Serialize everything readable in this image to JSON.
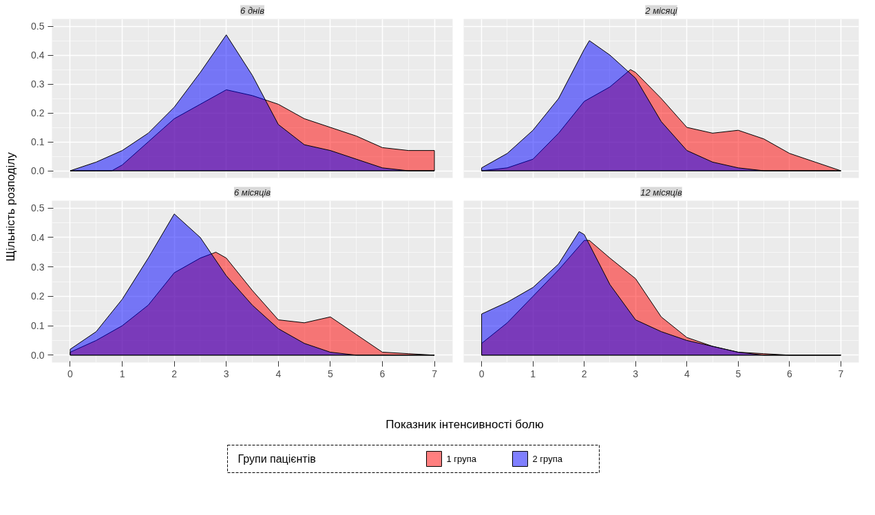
{
  "chart_data": [
    {
      "type": "area",
      "title": "6 днів",
      "ylabel": "Щільність розподілу",
      "legend_title": "Групи пацієнтів",
      "legend": "bottom",
      "tick_labels": "y",
      "grid": true,
      "xlim": [
        -0.35,
        7.35
      ],
      "ylim": [
        -0.025,
        0.525
      ],
      "xticks": [
        0,
        1,
        2,
        3,
        4,
        5,
        6,
        7
      ],
      "yticks": [
        {
          "value": 0,
          "label": "0.0"
        },
        {
          "value": 0.1,
          "label": "0.1"
        },
        {
          "value": 0.2,
          "label": "0.2"
        },
        {
          "value": 0.3,
          "label": "0.3"
        },
        {
          "value": 0.4,
          "label": "0.4"
        },
        {
          "value": 0.5,
          "label": "0.5"
        }
      ],
      "series": [
        {
          "name": "1 група",
          "color": "#ff0000",
          "x": [
            0,
            0.5,
            0.8,
            1,
            1.5,
            2,
            2.5,
            3,
            3.5,
            4,
            4.5,
            5,
            5.5,
            6,
            6.5,
            7
          ],
          "values": [
            0,
            0,
            0,
            0.02,
            0.1,
            0.18,
            0.23,
            0.28,
            0.26,
            0.23,
            0.18,
            0.15,
            0.12,
            0.08,
            0.07,
            0.07
          ]
        },
        {
          "name": "2 група",
          "color": "#0000ff",
          "x": [
            0,
            0.5,
            1,
            1.5,
            2,
            2.5,
            3,
            3.5,
            4,
            4.5,
            5,
            5.5,
            6,
            6.5,
            7
          ],
          "values": [
            0,
            0.03,
            0.07,
            0.13,
            0.22,
            0.34,
            0.47,
            0.33,
            0.16,
            0.09,
            0.07,
            0.04,
            0.01,
            0,
            0
          ]
        }
      ]
    },
    {
      "type": "area",
      "title": "2 місяці",
      "tick_labels": false,
      "grid": true,
      "xlim": [
        -0.35,
        7.35
      ],
      "ylim": [
        -0.025,
        0.525
      ],
      "xticks": [
        0,
        1,
        2,
        3,
        4,
        5,
        6,
        7
      ],
      "yticks": [
        0,
        0.1,
        0.2,
        0.3,
        0.4,
        0.5
      ],
      "series": [
        {
          "color": "#ff0000",
          "x": [
            0,
            0.5,
            1,
            1.5,
            2,
            2.5,
            2.9,
            3,
            3.5,
            4,
            4.5,
            5,
            5.5,
            6,
            6.5,
            7
          ],
          "values": [
            0,
            0.01,
            0.04,
            0.13,
            0.24,
            0.29,
            0.35,
            0.34,
            0.25,
            0.15,
            0.13,
            0.14,
            0.11,
            0.06,
            0.03,
            0
          ]
        },
        {
          "color": "#0000ff",
          "x": [
            0,
            0.5,
            1,
            1.5,
            2,
            2.1,
            2.5,
            3,
            3.5,
            4,
            4.5,
            5,
            5.5,
            6,
            6.5,
            7
          ],
          "values": [
            0.01,
            0.06,
            0.14,
            0.25,
            0.42,
            0.45,
            0.4,
            0.32,
            0.17,
            0.07,
            0.03,
            0.01,
            0,
            0,
            0,
            0
          ]
        }
      ]
    },
    {
      "type": "area",
      "title": "6 місяців",
      "xlabel": "Показник інтенсивності болю",
      "grid": true,
      "xlim": [
        -0.35,
        7.35
      ],
      "ylim": [
        -0.025,
        0.525
      ],
      "xticks": [
        0,
        1,
        2,
        3,
        4,
        5,
        6,
        7
      ],
      "yticks": [
        {
          "value": 0,
          "label": "0.0"
        },
        {
          "value": 0.1,
          "label": "0.1"
        },
        {
          "value": 0.2,
          "label": "0.2"
        },
        {
          "value": 0.3,
          "label": "0.3"
        },
        {
          "value": 0.4,
          "label": "0.4"
        },
        {
          "value": 0.5,
          "label": "0.5"
        }
      ],
      "series": [
        {
          "color": "#ff0000",
          "x": [
            0,
            0.5,
            1,
            1.5,
            2,
            2.5,
            2.8,
            3,
            3.5,
            4,
            4.5,
            5,
            5.5,
            6,
            6.5,
            7
          ],
          "values": [
            0.01,
            0.05,
            0.1,
            0.17,
            0.28,
            0.33,
            0.35,
            0.33,
            0.22,
            0.12,
            0.11,
            0.13,
            0.07,
            0.01,
            0.005,
            0
          ]
        },
        {
          "color": "#0000ff",
          "x": [
            0,
            0.5,
            1,
            1.5,
            2,
            2.5,
            3,
            3.5,
            4,
            4.5,
            5,
            5.5,
            6,
            6.5,
            7
          ],
          "values": [
            0.02,
            0.08,
            0.19,
            0.33,
            0.48,
            0.4,
            0.27,
            0.17,
            0.09,
            0.04,
            0.01,
            0,
            0,
            0,
            0
          ]
        }
      ]
    },
    {
      "type": "area",
      "title": "12 місяців",
      "tick_labels": "x",
      "grid": true,
      "xlim": [
        -0.35,
        7.35
      ],
      "ylim": [
        -0.025,
        0.525
      ],
      "xticks": [
        0,
        1,
        2,
        3,
        4,
        5,
        6,
        7
      ],
      "yticks": [
        0,
        0.1,
        0.2,
        0.3,
        0.4,
        0.5
      ],
      "series": [
        {
          "color": "#ff0000",
          "x": [
            0,
            0.5,
            1,
            1.5,
            2,
            2.1,
            2.5,
            3,
            3.5,
            4,
            4.5,
            5,
            5.5,
            6,
            6.5,
            7
          ],
          "values": [
            0.04,
            0.11,
            0.2,
            0.29,
            0.39,
            0.39,
            0.33,
            0.26,
            0.13,
            0.06,
            0.03,
            0.01,
            0.005,
            0,
            0,
            0
          ]
        },
        {
          "color": "#0000ff",
          "x": [
            0,
            0.5,
            1,
            1.5,
            1.9,
            2,
            2.5,
            3,
            3.5,
            4,
            4.5,
            5,
            5.5,
            6,
            6.5,
            7
          ],
          "values": [
            0.14,
            0.18,
            0.23,
            0.31,
            0.42,
            0.41,
            0.24,
            0.12,
            0.08,
            0.05,
            0.03,
            0.01,
            0,
            0,
            0,
            0
          ]
        }
      ]
    }
  ]
}
